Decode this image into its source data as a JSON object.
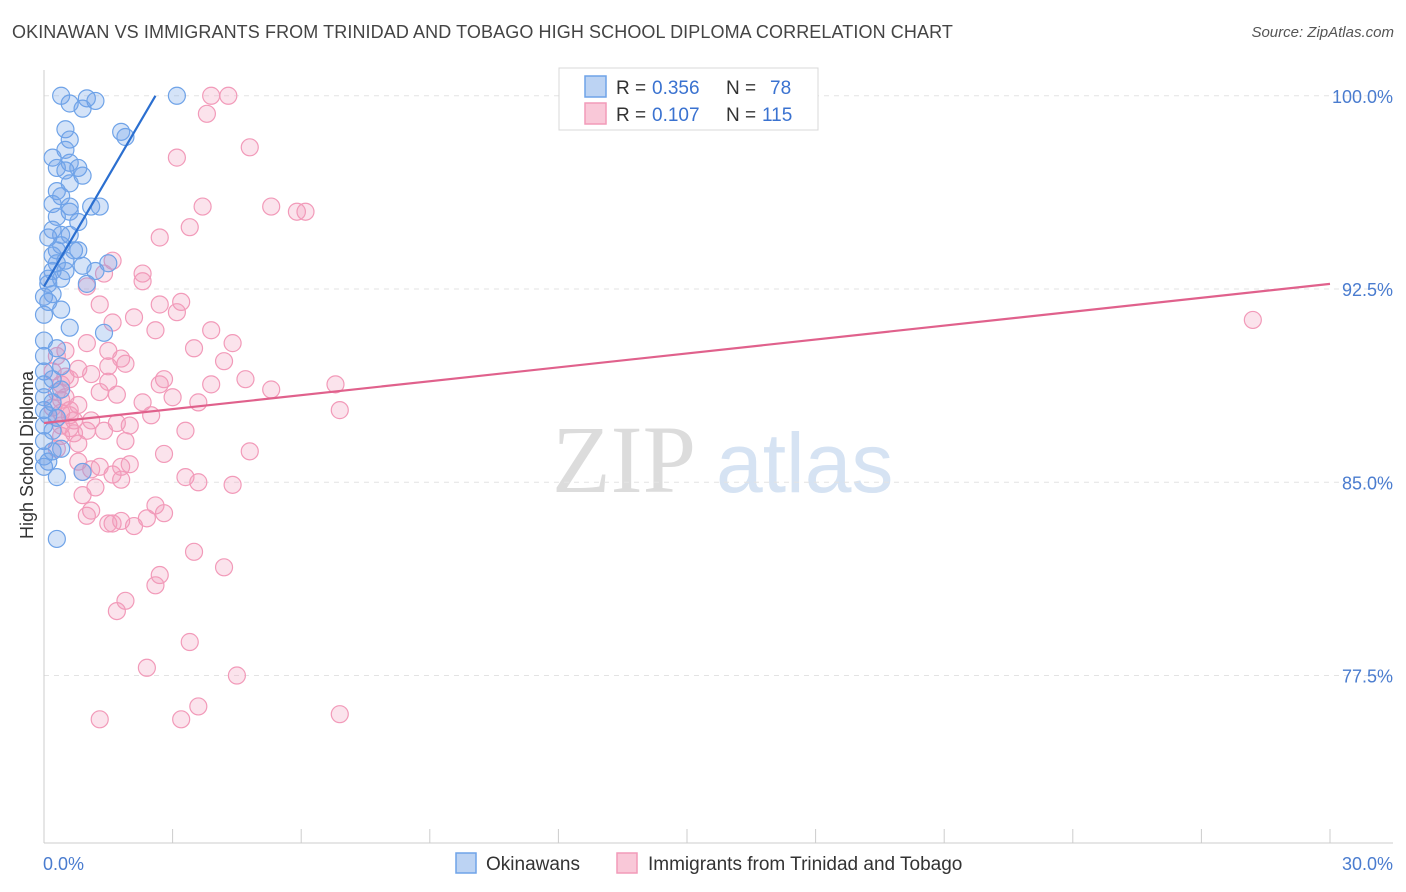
{
  "title": "OKINAWAN VS IMMIGRANTS FROM TRINIDAD AND TOBAGO HIGH SCHOOL DIPLOMA CORRELATION CHART",
  "source": "Source: ZipAtlas.com",
  "watermark": {
    "zip": "ZIP",
    "atlas": "atlas"
  },
  "colors": {
    "blue": "#6fa3e8",
    "blue_line": "#2b6fd0",
    "pink": "#f29ab9",
    "pink_line": "#e0618c",
    "tick": "#4a7ccf"
  },
  "legend": {
    "series": [
      {
        "r_label": "R =",
        "r_value": "0.356",
        "n_label": "N =",
        "n_value": "78"
      },
      {
        "r_label": "R =",
        "r_value": "0.107",
        "n_label": "N =",
        "n_value": "115"
      }
    ]
  },
  "chart_data": {
    "type": "scatter",
    "title": "OKINAWAN VS IMMIGRANTS FROM TRINIDAD AND TOBAGO HIGH SCHOOL DIPLOMA CORRELATION CHART",
    "xlabel": "",
    "ylabel": "High School Diploma",
    "xlim": [
      0,
      30
    ],
    "ylim": [
      71,
      101
    ],
    "x_tick_labels": [
      "0.0%",
      "30.0%"
    ],
    "y_ticks": [
      77.5,
      85.0,
      92.5,
      100.0
    ],
    "y_tick_labels": [
      "77.5%",
      "85.0%",
      "92.5%",
      "100.0%"
    ],
    "series": [
      {
        "name": "Okinawans",
        "r": 0.356,
        "n": 78,
        "trend": {
          "x": [
            0.0,
            2.6
          ],
          "y": [
            92.6,
            100.0
          ]
        },
        "points": [
          [
            0.4,
            100
          ],
          [
            1.0,
            99.9
          ],
          [
            0.6,
            99.7
          ],
          [
            1.2,
            99.8
          ],
          [
            3.1,
            100
          ],
          [
            0.9,
            99.5
          ],
          [
            0.5,
            98.7
          ],
          [
            1.8,
            98.6
          ],
          [
            1.9,
            98.4
          ],
          [
            0.6,
            98.3
          ],
          [
            0.5,
            97.9
          ],
          [
            0.2,
            97.6
          ],
          [
            0.6,
            97.4
          ],
          [
            0.3,
            97.2
          ],
          [
            0.5,
            97.1
          ],
          [
            0.8,
            97.2
          ],
          [
            0.9,
            96.9
          ],
          [
            0.6,
            96.6
          ],
          [
            0.3,
            96.3
          ],
          [
            0.4,
            96.1
          ],
          [
            0.2,
            95.8
          ],
          [
            0.6,
            95.7
          ],
          [
            1.1,
            95.7
          ],
          [
            1.3,
            95.7
          ],
          [
            0.6,
            95.5
          ],
          [
            0.3,
            95.3
          ],
          [
            0.8,
            95.1
          ],
          [
            0.2,
            94.8
          ],
          [
            0.4,
            94.6
          ],
          [
            0.1,
            94.5
          ],
          [
            0.6,
            94.6
          ],
          [
            0.4,
            94.2
          ],
          [
            0.3,
            94.0
          ],
          [
            0.7,
            94.0
          ],
          [
            0.8,
            94.0
          ],
          [
            0.2,
            93.8
          ],
          [
            0.5,
            93.6
          ],
          [
            0.3,
            93.5
          ],
          [
            0.9,
            93.4
          ],
          [
            1.5,
            93.5
          ],
          [
            0.2,
            93.2
          ],
          [
            0.5,
            93.2
          ],
          [
            1.2,
            93.2
          ],
          [
            0.1,
            92.9
          ],
          [
            0.4,
            92.9
          ],
          [
            0.1,
            92.7
          ],
          [
            1.0,
            92.7
          ],
          [
            0.2,
            92.3
          ],
          [
            0.0,
            92.2
          ],
          [
            0.1,
            92.0
          ],
          [
            0.4,
            91.7
          ],
          [
            0.0,
            91.5
          ],
          [
            0.6,
            91.0
          ],
          [
            1.4,
            90.8
          ],
          [
            0.0,
            90.5
          ],
          [
            0.3,
            90.2
          ],
          [
            0.0,
            89.9
          ],
          [
            0.4,
            89.5
          ],
          [
            0.0,
            89.3
          ],
          [
            0.2,
            89.0
          ],
          [
            0.0,
            88.8
          ],
          [
            0.4,
            88.6
          ],
          [
            0.0,
            88.3
          ],
          [
            0.2,
            88.1
          ],
          [
            0.0,
            87.8
          ],
          [
            0.1,
            87.6
          ],
          [
            0.3,
            87.5
          ],
          [
            0.0,
            87.2
          ],
          [
            0.2,
            87.0
          ],
          [
            0.0,
            86.6
          ],
          [
            0.4,
            86.3
          ],
          [
            0.2,
            86.2
          ],
          [
            0.0,
            86.0
          ],
          [
            0.1,
            85.8
          ],
          [
            0.0,
            85.6
          ],
          [
            0.9,
            85.4
          ],
          [
            0.3,
            85.2
          ],
          [
            0.3,
            82.8
          ]
        ]
      },
      {
        "name": "Immigrants from Trinidad and Tobago",
        "r": 0.107,
        "n": 115,
        "trend": {
          "x": [
            0.0,
            30.0
          ],
          "y": [
            87.3,
            92.7
          ]
        },
        "points": [
          [
            3.9,
            100
          ],
          [
            4.3,
            100
          ],
          [
            3.8,
            99.3
          ],
          [
            4.8,
            98.0
          ],
          [
            3.1,
            97.6
          ],
          [
            5.3,
            95.7
          ],
          [
            5.9,
            95.5
          ],
          [
            3.7,
            95.7
          ],
          [
            6.1,
            95.5
          ],
          [
            3.4,
            94.9
          ],
          [
            2.7,
            94.5
          ],
          [
            1.6,
            93.6
          ],
          [
            2.3,
            93.1
          ],
          [
            1.4,
            93.1
          ],
          [
            2.3,
            92.8
          ],
          [
            1.0,
            92.6
          ],
          [
            3.2,
            92.0
          ],
          [
            2.7,
            91.9
          ],
          [
            1.3,
            91.9
          ],
          [
            3.1,
            91.6
          ],
          [
            2.1,
            91.4
          ],
          [
            1.6,
            91.2
          ],
          [
            3.9,
            90.9
          ],
          [
            2.6,
            90.9
          ],
          [
            4.4,
            90.4
          ],
          [
            1.0,
            90.4
          ],
          [
            3.5,
            90.2
          ],
          [
            1.5,
            90.1
          ],
          [
            0.5,
            90.1
          ],
          [
            0.3,
            89.9
          ],
          [
            1.8,
            89.8
          ],
          [
            1.9,
            89.6
          ],
          [
            1.5,
            89.5
          ],
          [
            0.8,
            89.4
          ],
          [
            0.2,
            89.3
          ],
          [
            4.2,
            89.7
          ],
          [
            0.5,
            89.1
          ],
          [
            0.6,
            89.0
          ],
          [
            2.8,
            89.0
          ],
          [
            4.7,
            89.0
          ],
          [
            0.4,
            88.8
          ],
          [
            2.7,
            88.8
          ],
          [
            3.9,
            88.8
          ],
          [
            6.8,
            88.8
          ],
          [
            5.3,
            88.6
          ],
          [
            0.3,
            88.5
          ],
          [
            1.3,
            88.5
          ],
          [
            1.7,
            88.4
          ],
          [
            0.4,
            88.2
          ],
          [
            0.8,
            88.0
          ],
          [
            2.3,
            88.1
          ],
          [
            3.6,
            88.1
          ],
          [
            0.6,
            87.8
          ],
          [
            0.4,
            87.7
          ],
          [
            6.9,
            87.8
          ],
          [
            2.5,
            87.6
          ],
          [
            0.3,
            87.5
          ],
          [
            0.7,
            87.4
          ],
          [
            1.1,
            87.4
          ],
          [
            1.7,
            87.3
          ],
          [
            0.4,
            87.2
          ],
          [
            0.6,
            87.1
          ],
          [
            1.0,
            87.0
          ],
          [
            3.3,
            87.0
          ],
          [
            2.0,
            87.2
          ],
          [
            0.4,
            86.8
          ],
          [
            0.8,
            86.5
          ],
          [
            4.8,
            86.2
          ],
          [
            2.8,
            86.1
          ],
          [
            0.8,
            85.8
          ],
          [
            1.3,
            85.6
          ],
          [
            1.8,
            85.6
          ],
          [
            1.1,
            85.5
          ],
          [
            0.9,
            85.4
          ],
          [
            1.6,
            85.3
          ],
          [
            3.3,
            85.2
          ],
          [
            1.8,
            85.1
          ],
          [
            3.6,
            85.0
          ],
          [
            4.4,
            84.9
          ],
          [
            1.2,
            84.8
          ],
          [
            0.9,
            84.5
          ],
          [
            2.6,
            84.1
          ],
          [
            1.1,
            83.9
          ],
          [
            2.8,
            83.8
          ],
          [
            1.0,
            83.7
          ],
          [
            2.4,
            83.6
          ],
          [
            1.6,
            83.4
          ],
          [
            1.8,
            83.5
          ],
          [
            1.5,
            83.4
          ],
          [
            2.1,
            83.3
          ],
          [
            3.5,
            82.3
          ],
          [
            4.2,
            81.7
          ],
          [
            2.7,
            81.4
          ],
          [
            2.6,
            81.0
          ],
          [
            1.9,
            80.4
          ],
          [
            1.7,
            80.0
          ],
          [
            3.4,
            78.8
          ],
          [
            2.4,
            77.8
          ],
          [
            4.5,
            77.5
          ],
          [
            3.6,
            76.3
          ],
          [
            6.9,
            76.0
          ],
          [
            1.3,
            75.8
          ],
          [
            3.2,
            75.8
          ],
          [
            0.3,
            86.3
          ],
          [
            0.5,
            88.3
          ],
          [
            1.1,
            89.2
          ],
          [
            0.6,
            87.6
          ],
          [
            2.0,
            85.7
          ],
          [
            1.4,
            87.0
          ],
          [
            28.2,
            91.3
          ],
          [
            0.7,
            86.9
          ],
          [
            1.9,
            86.6
          ],
          [
            0.2,
            87.9
          ],
          [
            1.5,
            88.9
          ],
          [
            3.0,
            88.3
          ]
        ]
      }
    ]
  },
  "axis_labels": {
    "x_min": "0.0%",
    "x_max": "30.0%",
    "y_ticks": [
      "77.5%",
      "85.0%",
      "92.5%",
      "100.0%"
    ],
    "ylabel": "High School Diploma"
  }
}
